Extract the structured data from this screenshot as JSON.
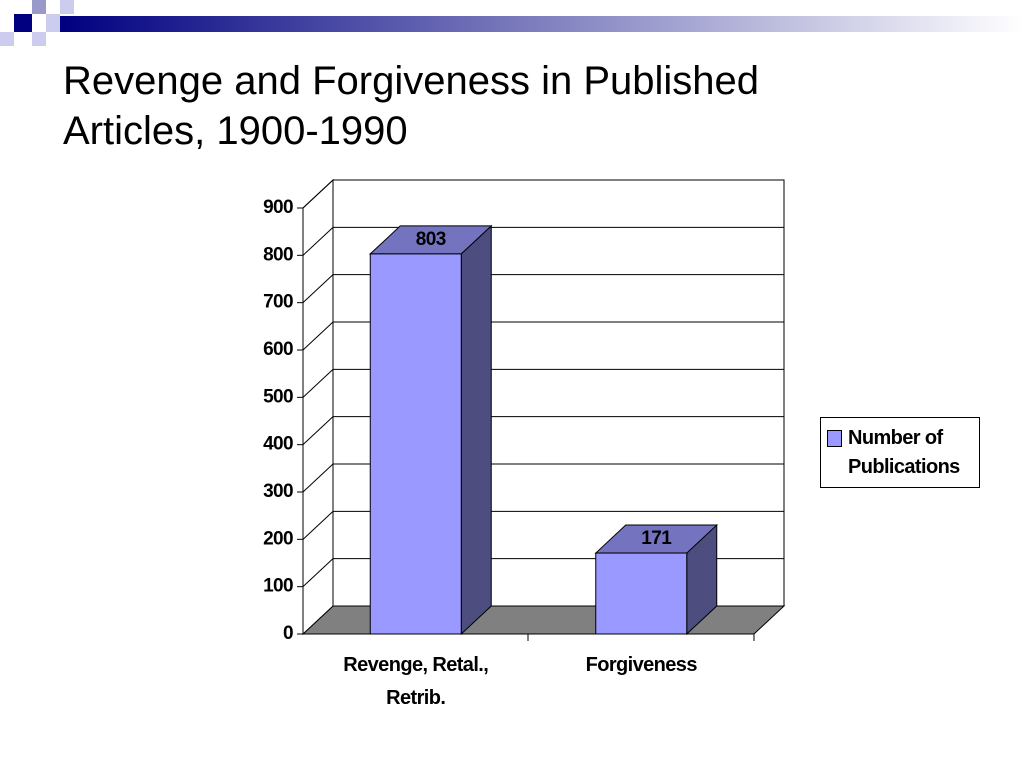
{
  "chart_data": {
    "type": "bar3d",
    "title": "Revenge and Forgiveness in Published Articles, 1900-1990",
    "categories": [
      "Revenge, Retal., Retrib.",
      "Forgiveness"
    ],
    "series": [
      {
        "name": "Number of Publications",
        "color": "#9999ff",
        "values": [
          803,
          171
        ]
      }
    ],
    "ylim": [
      0,
      900
    ],
    "yticks": [
      0,
      100,
      200,
      300,
      400,
      500,
      600,
      700,
      800,
      900
    ],
    "grid": true,
    "legend": "right"
  }
}
